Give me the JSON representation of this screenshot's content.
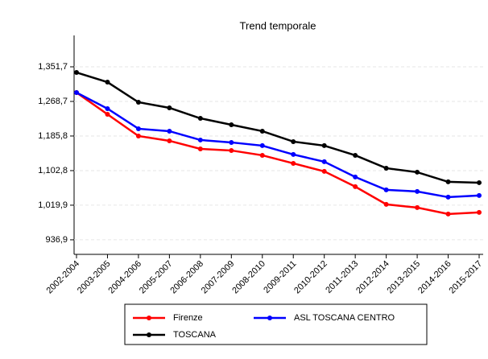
{
  "chart_data": {
    "type": "line",
    "title": "Trend temporale",
    "categories": [
      "2002-2004",
      "2003-2005",
      "2004-2006",
      "2005-2007",
      "2006-2008",
      "2007-2009",
      "2008-2010",
      "2009-2011",
      "2010-2012",
      "2011-2013",
      "2012-2014",
      "2013-2015",
      "2014-2016",
      "2015-2017"
    ],
    "series": [
      {
        "name": "Firenze",
        "color": "#ff0000",
        "values": [
          1290.0,
          1237.9,
          1185.8,
          1174.2,
          1154.9,
          1151.1,
          1139.5,
          1120.2,
          1101.0,
          1064.3,
          1021.9,
          1014.1,
          998.7,
          1002.6
        ]
      },
      {
        "name": "ASL TOSCANA CENTRO",
        "color": "#0000ff",
        "values": [
          1290.0,
          1251.4,
          1203.2,
          1197.4,
          1176.2,
          1170.4,
          1162.7,
          1141.5,
          1124.1,
          1087.5,
          1056.6,
          1052.8,
          1039.2,
          1043.1
        ]
      },
      {
        "name": "TOSCANA",
        "color": "#000000",
        "values": [
          1338.2,
          1315.0,
          1266.8,
          1253.3,
          1228.2,
          1212.8,
          1197.4,
          1172.3,
          1162.7,
          1139.5,
          1108.6,
          1099.0,
          1075.9,
          1073.9
        ]
      }
    ],
    "ylim": [
      902,
      1427
    ],
    "yticks": [
      {
        "value": 936.9,
        "label": "936,9"
      },
      {
        "value": 1019.9,
        "label": "1,019,9"
      },
      {
        "value": 1102.8,
        "label": "1,102,8"
      },
      {
        "value": 1185.8,
        "label": "1,185,8"
      },
      {
        "value": 1268.7,
        "label": "1,268,7"
      },
      {
        "value": 1351.7,
        "label": "1,351,7"
      }
    ],
    "grid": true
  }
}
